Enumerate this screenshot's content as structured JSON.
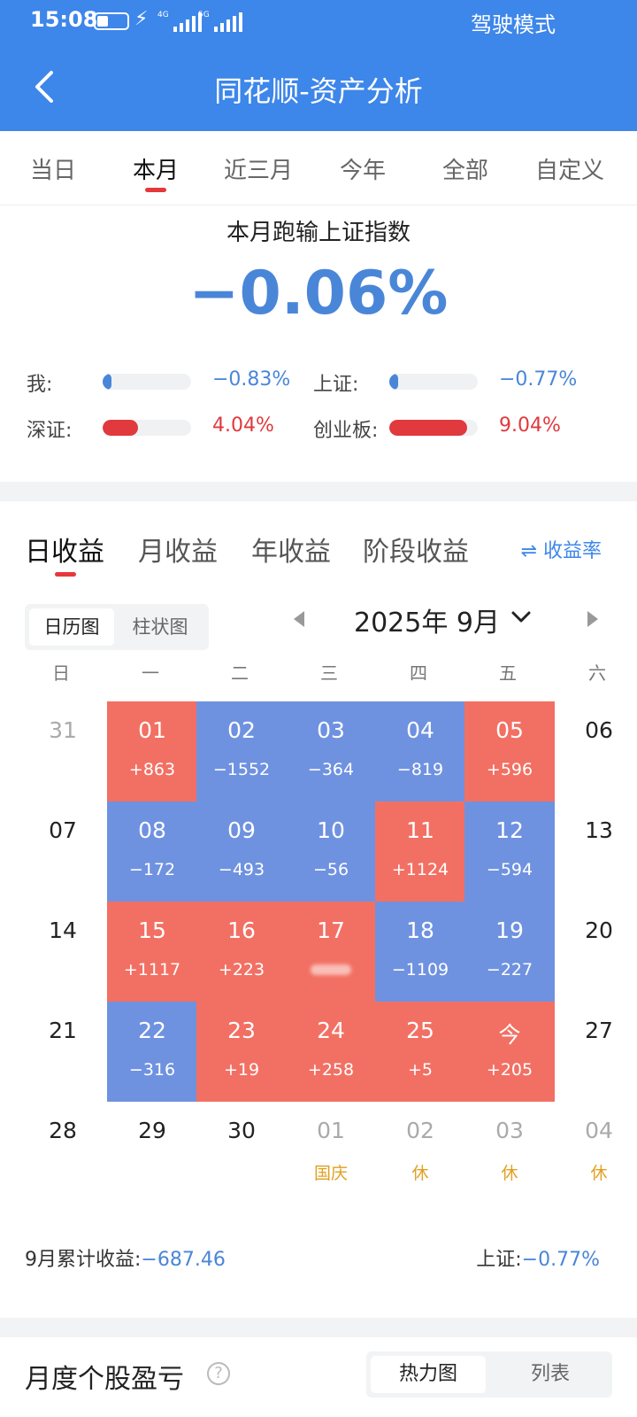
{
  "status_bar": {
    "time": "15:08",
    "network_1": "4G",
    "network_2": "5G",
    "mode": "驾驶模式"
  },
  "header": {
    "title": "同花顺-资产分析"
  },
  "period_tabs": [
    "当日",
    "本月",
    "近三月",
    "今年",
    "全部",
    "自定义"
  ],
  "period_active": "本月",
  "comparison": {
    "caption": "本月跑输上证指数",
    "diff": "−0.06%",
    "rows": [
      {
        "label": "我:",
        "value": "−0.83%",
        "level": 0.08,
        "sign": "neg"
      },
      {
        "label": "上证:",
        "value": "−0.77%",
        "level": 0.08,
        "sign": "neg"
      },
      {
        "label": "深证:",
        "value": "4.04%",
        "level": 0.4,
        "sign": "pos"
      },
      {
        "label": "创业板:",
        "value": "9.04%",
        "level": 0.88,
        "sign": "pos"
      }
    ]
  },
  "earnings_tabs": [
    "日收益",
    "月收益",
    "年收益",
    "阶段收益"
  ],
  "earnings_active": "日收益",
  "rate_toggle": "⇌ 收益率",
  "view_options": [
    "日历图",
    "柱状图"
  ],
  "view_active": "日历图",
  "month_label": "2025年 9月",
  "weekdays": [
    "日",
    "一",
    "二",
    "三",
    "四",
    "五",
    "六"
  ],
  "calendar": [
    [
      {
        "d": "31",
        "style": "faded"
      },
      {
        "d": "01",
        "v": "+863",
        "style": "red"
      },
      {
        "d": "02",
        "v": "−1552",
        "style": "blue"
      },
      {
        "d": "03",
        "v": "−364",
        "style": "blue"
      },
      {
        "d": "04",
        "v": "−819",
        "style": "blue"
      },
      {
        "d": "05",
        "v": "+596",
        "style": "red"
      },
      {
        "d": "06",
        "style": "plain"
      }
    ],
    [
      {
        "d": "07",
        "style": "plain"
      },
      {
        "d": "08",
        "v": "−172",
        "style": "blue"
      },
      {
        "d": "09",
        "v": "−493",
        "style": "blue"
      },
      {
        "d": "10",
        "v": "−56",
        "style": "blue"
      },
      {
        "d": "11",
        "v": "+1124",
        "style": "red"
      },
      {
        "d": "12",
        "v": "−594",
        "style": "blue"
      },
      {
        "d": "13",
        "style": "plain"
      }
    ],
    [
      {
        "d": "14",
        "style": "plain"
      },
      {
        "d": "15",
        "v": "+1117",
        "style": "red"
      },
      {
        "d": "16",
        "v": "+223",
        "style": "red"
      },
      {
        "d": "17",
        "v": "",
        "style": "red",
        "blurred": true
      },
      {
        "d": "18",
        "v": "−1109",
        "style": "blue"
      },
      {
        "d": "19",
        "v": "−227",
        "style": "blue"
      },
      {
        "d": "20",
        "style": "plain"
      }
    ],
    [
      {
        "d": "21",
        "style": "plain"
      },
      {
        "d": "22",
        "v": "−316",
        "style": "blue"
      },
      {
        "d": "23",
        "v": "+19",
        "style": "red"
      },
      {
        "d": "24",
        "v": "+258",
        "style": "red"
      },
      {
        "d": "25",
        "v": "+5",
        "style": "red"
      },
      {
        "d": "今",
        "v": "+205",
        "style": "red"
      },
      {
        "d": "27",
        "style": "plain"
      }
    ],
    [
      {
        "d": "28",
        "style": "plain"
      },
      {
        "d": "29",
        "style": "plain"
      },
      {
        "d": "30",
        "style": "plain"
      },
      {
        "d": "01",
        "h": "国庆",
        "style": "faded"
      },
      {
        "d": "02",
        "h": "休",
        "style": "faded"
      },
      {
        "d": "03",
        "h": "休",
        "style": "faded"
      },
      {
        "d": "04",
        "h": "休",
        "style": "faded"
      }
    ]
  ],
  "cumulative": {
    "label": "9月累计收益:",
    "value": "−687.46"
  },
  "index_cumulative": {
    "label": "上证:",
    "value": "−0.77%"
  },
  "bottom": {
    "title": "月度个股盈亏",
    "help": "?",
    "options": [
      "热力图",
      "列表"
    ],
    "active": "热力图"
  },
  "colors": {
    "primary": "#3d86ea",
    "gain": "#f27063",
    "loss": "#6f92e0",
    "holiday": "#e1a020"
  }
}
